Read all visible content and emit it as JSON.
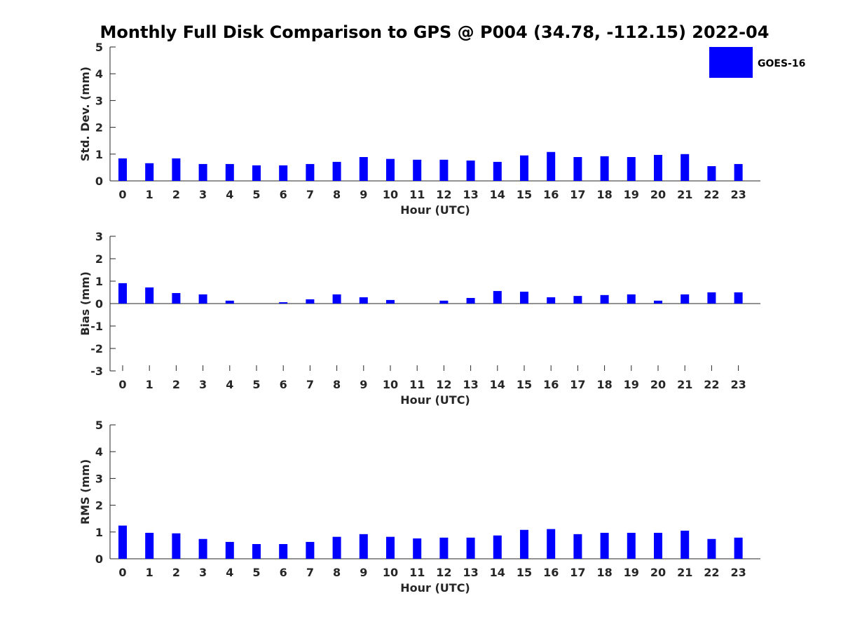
{
  "chart_data": {
    "type": "bar",
    "title": "Monthly Full Disk Comparison to GPS @ P004 (34.78, -112.15) 2022-04",
    "bar_color": "#0000ff",
    "legend": {
      "label": "GOES-16",
      "placement": "top-right"
    },
    "categories": [
      "0",
      "1",
      "2",
      "3",
      "4",
      "5",
      "6",
      "7",
      "8",
      "9",
      "10",
      "11",
      "12",
      "13",
      "14",
      "15",
      "16",
      "17",
      "18",
      "19",
      "20",
      "21",
      "22",
      "23"
    ],
    "panels": [
      {
        "name": "std-dev",
        "xlabel": "Hour (UTC)",
        "ylabel": "Std. Dev. (mm)",
        "ylim": [
          0,
          5
        ],
        "yticks": [
          "0",
          "1",
          "2",
          "3",
          "4",
          "5"
        ],
        "series": [
          {
            "name": "GOES-16",
            "values": [
              0.84,
              0.66,
              0.84,
              0.63,
              0.63,
              0.58,
              0.58,
              0.63,
              0.71,
              0.89,
              0.82,
              0.79,
              0.79,
              0.76,
              0.71,
              0.95,
              1.08,
              0.89,
              0.92,
              0.89,
              0.97,
              1.0,
              0.55,
              0.63
            ]
          }
        ]
      },
      {
        "name": "bias",
        "xlabel": "Hour (UTC)",
        "ylabel": "Bias (mm)",
        "ylim": [
          -3,
          3
        ],
        "yticks": [
          "-3",
          "-2",
          "-1",
          "0",
          "1",
          "2",
          "3"
        ],
        "series": [
          {
            "name": "GOES-16",
            "values": [
              0.91,
              0.72,
              0.47,
              0.41,
              0.13,
              0.0,
              0.06,
              0.19,
              0.41,
              0.28,
              0.16,
              0.0,
              0.13,
              0.25,
              0.56,
              0.53,
              0.28,
              0.34,
              0.38,
              0.41,
              0.13,
              0.41,
              0.5,
              0.5
            ]
          }
        ]
      },
      {
        "name": "rms",
        "xlabel": "Hour (UTC)",
        "ylabel": "RMS (mm)",
        "ylim": [
          0,
          5
        ],
        "yticks": [
          "0",
          "1",
          "2",
          "3",
          "4",
          "5"
        ],
        "series": [
          {
            "name": "GOES-16",
            "values": [
              1.24,
              0.97,
              0.95,
              0.74,
              0.63,
              0.55,
              0.55,
              0.63,
              0.82,
              0.92,
              0.82,
              0.76,
              0.79,
              0.79,
              0.87,
              1.08,
              1.11,
              0.92,
              0.97,
              0.97,
              0.97,
              1.05,
              0.74,
              0.79
            ]
          }
        ]
      }
    ]
  }
}
